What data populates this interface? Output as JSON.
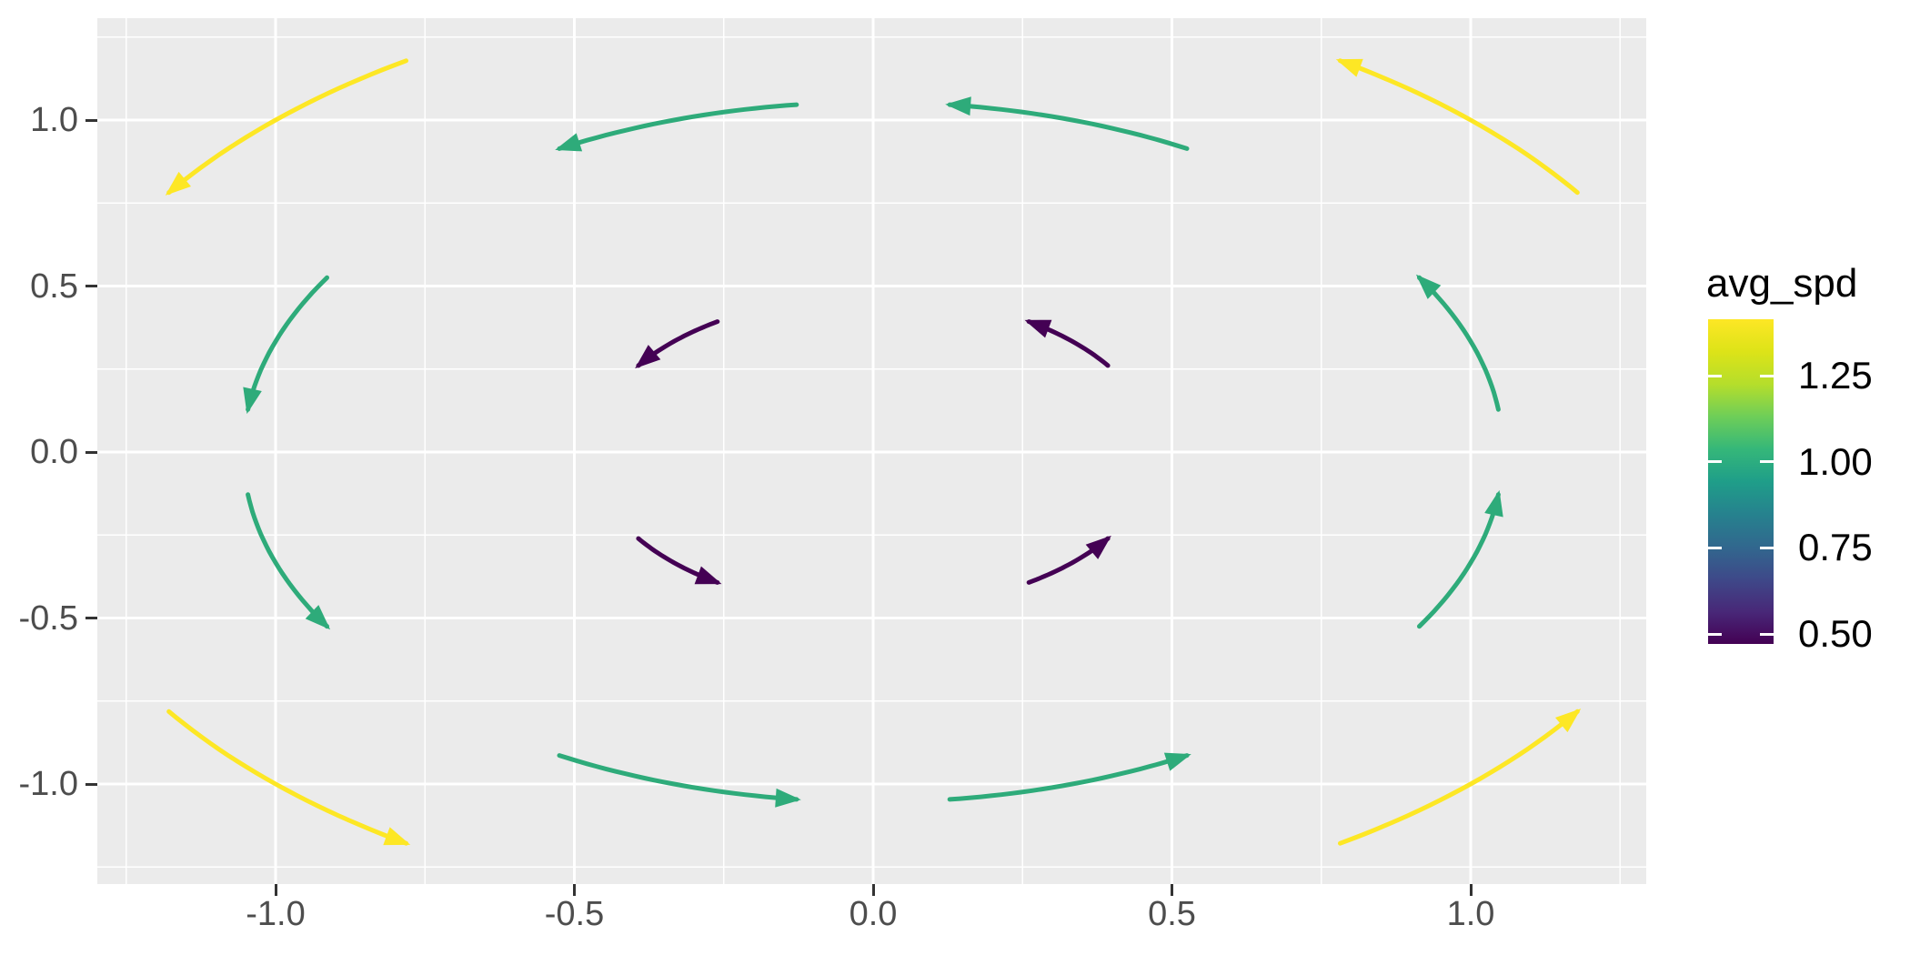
{
  "chart_data": {
    "type": "vector_field",
    "description": "Curved flow arrows of a counterclockwise rigid rotation, colored by average speed (viridis scale)",
    "style": {
      "figure_bg": "#ffffff",
      "panel_bg": "#ebebeb",
      "gridline_color": "#ffffff",
      "tick_mark_color": "#333333",
      "axis_text_color": "#4d4d4d",
      "legend_text_color": "#000000"
    },
    "x_axis": {
      "tick_labels": [
        "-1.0",
        "-0.5",
        "0.0",
        "0.5",
        "1.0"
      ],
      "tick_values": [
        -1.0,
        -0.5,
        0.0,
        0.5,
        1.0
      ],
      "minor_values": [
        -1.25,
        -0.75,
        -0.25,
        0.25,
        0.75,
        1.25
      ],
      "range": [
        -1.3,
        1.29
      ]
    },
    "y_axis": {
      "tick_labels": [
        "-1.0",
        "-0.5",
        "0.0",
        "0.5",
        "1.0"
      ],
      "tick_values": [
        -1.0,
        -0.5,
        0.0,
        0.5,
        1.0
      ],
      "minor_values": [
        -1.25,
        -0.75,
        -0.25,
        0.25,
        0.75,
        1.25
      ],
      "range": [
        -1.3,
        1.31
      ]
    },
    "arrow_geometry": {
      "direction": "counterclockwise",
      "arc_span_deg": 22.9,
      "stroke_width": 5,
      "head_length": 28,
      "head_half_width": 10.5
    },
    "arrows": [
      {
        "x": 0.33,
        "y": 0.33,
        "r": 0.4714,
        "theta_deg": 45,
        "avg_spd": 0.47,
        "color": "#440154"
      },
      {
        "x": -0.33,
        "y": 0.33,
        "r": 0.4714,
        "theta_deg": 135,
        "avg_spd": 0.47,
        "color": "#440154"
      },
      {
        "x": -0.33,
        "y": -0.33,
        "r": 0.4714,
        "theta_deg": 225,
        "avg_spd": 0.47,
        "color": "#440154"
      },
      {
        "x": 0.33,
        "y": -0.33,
        "r": 0.4714,
        "theta_deg": 315,
        "avg_spd": 0.47,
        "color": "#440154"
      },
      {
        "x": 1.0,
        "y": 0.33,
        "r": 1.0541,
        "theta_deg": 18.43,
        "avg_spd": 1.05,
        "color": "#2eab7a"
      },
      {
        "x": 0.33,
        "y": 1.0,
        "r": 1.0541,
        "theta_deg": 71.57,
        "avg_spd": 1.05,
        "color": "#2eab7a"
      },
      {
        "x": -0.33,
        "y": 1.0,
        "r": 1.0541,
        "theta_deg": 108.43,
        "avg_spd": 1.05,
        "color": "#2eab7a"
      },
      {
        "x": -1.0,
        "y": 0.33,
        "r": 1.0541,
        "theta_deg": 161.57,
        "avg_spd": 1.05,
        "color": "#2eab7a"
      },
      {
        "x": -1.0,
        "y": -0.33,
        "r": 1.0541,
        "theta_deg": 198.43,
        "avg_spd": 1.05,
        "color": "#2eab7a"
      },
      {
        "x": -0.33,
        "y": -1.0,
        "r": 1.0541,
        "theta_deg": 251.57,
        "avg_spd": 1.05,
        "color": "#2eab7a"
      },
      {
        "x": 0.33,
        "y": -1.0,
        "r": 1.0541,
        "theta_deg": 288.43,
        "avg_spd": 1.05,
        "color": "#2eab7a"
      },
      {
        "x": 1.0,
        "y": -0.33,
        "r": 1.0541,
        "theta_deg": 341.57,
        "avg_spd": 1.05,
        "color": "#2eab7a"
      },
      {
        "x": 1.0,
        "y": 1.0,
        "r": 1.4142,
        "theta_deg": 45,
        "avg_spd": 1.41,
        "color": "#fde725"
      },
      {
        "x": -1.0,
        "y": 1.0,
        "r": 1.4142,
        "theta_deg": 135,
        "avg_spd": 1.41,
        "color": "#fde725"
      },
      {
        "x": -1.0,
        "y": -1.0,
        "r": 1.4142,
        "theta_deg": 225,
        "avg_spd": 1.41,
        "color": "#fde725"
      },
      {
        "x": 1.0,
        "y": -1.0,
        "r": 1.4142,
        "theta_deg": 315,
        "avg_spd": 1.41,
        "color": "#fde725"
      }
    ],
    "legend": {
      "title": "avg_spd",
      "tick_labels": [
        "1.25",
        "1.00",
        "0.75",
        "0.50"
      ],
      "tick_values": [
        1.25,
        1.0,
        0.75,
        0.5
      ],
      "value_range": [
        0.471,
        1.414
      ],
      "colormap": "viridis",
      "gradient_stops": [
        {
          "pct": 0,
          "color": "#440154"
        },
        {
          "pct": 10,
          "color": "#482878"
        },
        {
          "pct": 20,
          "color": "#3e4989"
        },
        {
          "pct": 30,
          "color": "#31688e"
        },
        {
          "pct": 40,
          "color": "#26828e"
        },
        {
          "pct": 50,
          "color": "#1f9e89"
        },
        {
          "pct": 60,
          "color": "#35b779"
        },
        {
          "pct": 70,
          "color": "#6ece58"
        },
        {
          "pct": 80,
          "color": "#b5de2b"
        },
        {
          "pct": 90,
          "color": "#dde318"
        },
        {
          "pct": 100,
          "color": "#fde725"
        }
      ]
    }
  }
}
